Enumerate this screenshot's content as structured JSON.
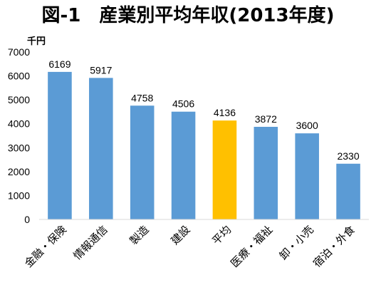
{
  "chart_data": {
    "type": "bar",
    "title": "図-1　産業別平均年収(2013年度)",
    "ylabel": "千円",
    "xlabel": "",
    "ylim": [
      0,
      7000
    ],
    "yticks": [
      0,
      1000,
      2000,
      3000,
      4000,
      5000,
      6000,
      7000
    ],
    "grid": false,
    "legend": "none",
    "categories": [
      "金融・保険",
      "情報通信",
      "製造",
      "建設",
      "平均",
      "医療・福祉",
      "卸・小売",
      "宿泊・外食"
    ],
    "values": [
      6169,
      5917,
      4758,
      4506,
      4136,
      3872,
      3600,
      2330
    ],
    "data_labels": [
      "6169",
      "5917",
      "4758",
      "4506",
      "4136",
      "3872",
      "3600",
      "2330"
    ],
    "highlight_category": "平均"
  },
  "colors": {
    "bar": "#5b9bd5",
    "highlight": "#ffc000",
    "axis": "#d9d9d9"
  }
}
